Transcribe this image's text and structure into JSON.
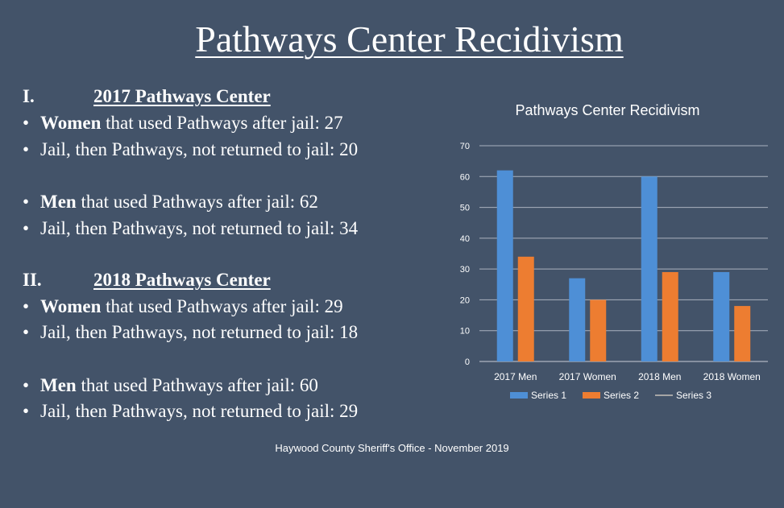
{
  "title": "Pathways Center Recidivism",
  "sections": [
    {
      "numeral": "I.",
      "heading": "2017 Pathways Center",
      "items": [
        {
          "bold": "Women",
          "rest": " that used Pathways after jail:  27"
        },
        {
          "bold": "",
          "rest": "Jail, then Pathways, not returned to jail:  20"
        },
        {
          "bold": "Men",
          "rest": " that used Pathways after jail:  62"
        },
        {
          "bold": "",
          "rest": "Jail, then Pathways, not returned to jail:  34"
        }
      ]
    },
    {
      "numeral": "II.",
      "heading": "2018 Pathways Center",
      "items": [
        {
          "bold": "Women",
          "rest": " that used Pathways after jail:  29"
        },
        {
          "bold": "",
          "rest": "Jail, then Pathways, not returned to jail:  18"
        },
        {
          "bold": "Men",
          "rest": " that used Pathways after jail:  60"
        },
        {
          "bold": "",
          "rest": "Jail, then Pathways, not returned to jail:  29"
        }
      ]
    }
  ],
  "bullet_char": "•",
  "footer": "Haywood County Sheriff's Office - November 2019",
  "chart_data": {
    "type": "bar",
    "title": "Pathways Center Recidivism",
    "categories": [
      "2017 Men",
      "2017 Women",
      "2018 Men",
      "2018 Women"
    ],
    "series": [
      {
        "name": "Series 1",
        "values": [
          62,
          27,
          60,
          29
        ],
        "color": "#4e8fd6"
      },
      {
        "name": "Series 2",
        "values": [
          34,
          20,
          29,
          18
        ],
        "color": "#ed7d31"
      },
      {
        "name": "Series 3",
        "values": [
          null,
          null,
          null,
          null
        ],
        "color": "#a5a5a5",
        "legend_shape": "line"
      }
    ],
    "ylim": [
      0,
      70
    ],
    "yticks": [
      0,
      10,
      20,
      30,
      40,
      50,
      60,
      70
    ],
    "grid": true,
    "xlabel": "",
    "ylabel": "",
    "legend": "bottom"
  }
}
